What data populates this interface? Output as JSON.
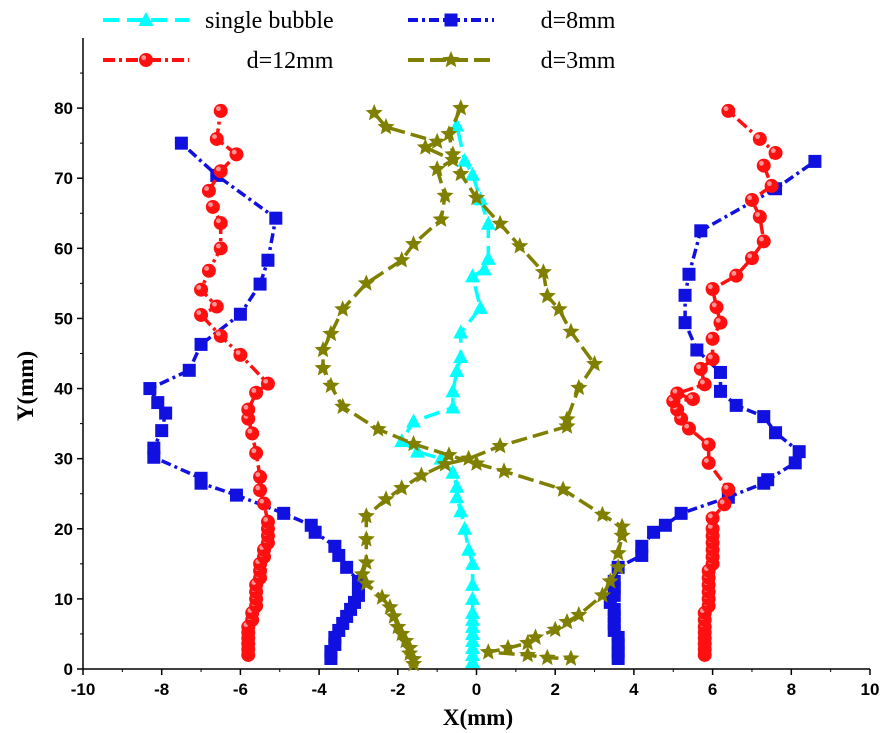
{
  "chart_data": {
    "type": "line",
    "title": "",
    "xlabel": "X(mm)",
    "ylabel": "Y(mm)",
    "xlim": [
      -10,
      10
    ],
    "ylim": [
      0,
      90
    ],
    "xticks": [
      "-10",
      "-8",
      "-6",
      "-4",
      "-2",
      "0",
      "2",
      "4",
      "6",
      "8",
      "10"
    ],
    "yticks": [
      "0",
      "10",
      "20",
      "30",
      "40",
      "50",
      "60",
      "70",
      "80"
    ],
    "grid": false,
    "legend_position": "top",
    "series": [
      {
        "name": "single bubble",
        "color": "#00ffff",
        "marker": "triangle",
        "dash": "16,8",
        "branches": [
          [
            [
              -0.1,
              1
            ],
            [
              -0.1,
              2
            ],
            [
              -0.1,
              3
            ],
            [
              -0.1,
              4
            ],
            [
              -0.1,
              5
            ],
            [
              -0.1,
              6
            ],
            [
              -0.1,
              7
            ],
            [
              -0.1,
              8
            ],
            [
              -0.1,
              10
            ],
            [
              -0.1,
              12
            ],
            [
              -0.1,
              15
            ],
            [
              -0.2,
              17
            ],
            [
              -0.3,
              20
            ],
            [
              -0.4,
              22.5
            ],
            [
              -0.5,
              24.5
            ],
            [
              -0.5,
              26
            ],
            [
              -0.6,
              28
            ],
            [
              -0.9,
              30
            ],
            [
              -1.5,
              31
            ],
            [
              -1.9,
              32.5
            ],
            [
              -1.6,
              35.3
            ],
            [
              -0.6,
              37.3
            ],
            [
              -0.6,
              39.6
            ],
            [
              -0.5,
              42.5
            ],
            [
              -0.4,
              44.5
            ],
            [
              -0.4,
              48
            ],
            [
              0.1,
              51.5
            ],
            [
              -0.1,
              56
            ],
            [
              0.2,
              57
            ],
            [
              0.3,
              58.5
            ],
            [
              0.3,
              63.5
            ],
            [
              0.1,
              67
            ],
            [
              -0.1,
              70.5
            ],
            [
              -0.3,
              72.5
            ],
            [
              -0.5,
              77.5
            ]
          ]
        ]
      },
      {
        "name": "d=8mm",
        "color": "#1010e0",
        "marker": "square",
        "dash": "10,4,3,4",
        "branches": [
          [
            [
              -3.7,
              1.5
            ],
            [
              -3.7,
              2.5
            ],
            [
              -3.6,
              3.5
            ],
            [
              -3.6,
              4.5
            ],
            [
              -3.5,
              5.5
            ],
            [
              -3.4,
              6.5
            ],
            [
              -3.3,
              7.5
            ],
            [
              -3.2,
              8.5
            ],
            [
              -3.1,
              9.5
            ],
            [
              -3.0,
              10.5
            ],
            [
              -3.0,
              11.5
            ],
            [
              -3.0,
              12.5
            ],
            [
              -3.3,
              14.5
            ],
            [
              -3.5,
              16.2
            ],
            [
              -3.6,
              17.5
            ],
            [
              -4.1,
              19.5
            ],
            [
              -4.2,
              20.5
            ],
            [
              -4.9,
              22.2
            ],
            [
              -6.1,
              24.8
            ],
            [
              -7.0,
              26.5
            ],
            [
              -7.0,
              27.2
            ],
            [
              -8.2,
              30.2
            ],
            [
              -8.2,
              31.5
            ],
            [
              -8.0,
              34.0
            ],
            [
              -7.9,
              36.5
            ],
            [
              -8.1,
              38.0
            ],
            [
              -8.3,
              40.0
            ],
            [
              -7.3,
              42.6
            ],
            [
              -7.0,
              46.3
            ],
            [
              -6.0,
              50.6
            ],
            [
              -5.5,
              54.9
            ],
            [
              -5.3,
              58.3
            ],
            [
              -5.1,
              64.3
            ],
            [
              -6.6,
              70.4
            ],
            [
              -7.5,
              75.0
            ]
          ],
          [
            [
              3.6,
              1.5
            ],
            [
              3.6,
              2.5
            ],
            [
              3.6,
              3.5
            ],
            [
              3.6,
              4.5
            ],
            [
              3.5,
              5.5
            ],
            [
              3.5,
              6.5
            ],
            [
              3.5,
              7.5
            ],
            [
              3.5,
              8.5
            ],
            [
              3.4,
              9.5
            ],
            [
              3.5,
              10.5
            ],
            [
              3.5,
              11.5
            ],
            [
              3.5,
              12.5
            ],
            [
              3.6,
              14.5
            ],
            [
              4.2,
              16.2
            ],
            [
              4.2,
              17.5
            ],
            [
              4.5,
              19.5
            ],
            [
              4.8,
              20.5
            ],
            [
              5.2,
              22.2
            ],
            [
              6.4,
              24.5
            ],
            [
              7.3,
              26.5
            ],
            [
              7.4,
              27.0
            ],
            [
              8.1,
              29.4
            ],
            [
              8.2,
              31.0
            ],
            [
              7.6,
              33.7
            ],
            [
              7.3,
              36.0
            ],
            [
              6.6,
              37.6
            ],
            [
              6.2,
              39.6
            ],
            [
              6.2,
              42.3
            ],
            [
              5.6,
              45.5
            ],
            [
              5.3,
              49.4
            ],
            [
              5.3,
              53.3
            ],
            [
              5.4,
              56.3
            ],
            [
              5.7,
              62.5
            ],
            [
              7.6,
              68.5
            ],
            [
              8.6,
              72.4
            ]
          ]
        ]
      },
      {
        "name": "d=12mm",
        "color": "#ff1010",
        "marker": "circle",
        "dash": "12,4,3,4",
        "branches": [
          [
            [
              -5.8,
              2
            ],
            [
              -5.8,
              2.8
            ],
            [
              -5.8,
              3.6
            ],
            [
              -5.8,
              4.4
            ],
            [
              -5.8,
              5.2
            ],
            [
              -5.8,
              6
            ],
            [
              -5.7,
              7
            ],
            [
              -5.7,
              8
            ],
            [
              -5.6,
              9
            ],
            [
              -5.6,
              10
            ],
            [
              -5.6,
              11
            ],
            [
              -5.6,
              12
            ],
            [
              -5.5,
              13
            ],
            [
              -5.5,
              14
            ],
            [
              -5.5,
              15
            ],
            [
              -5.4,
              16
            ],
            [
              -5.4,
              17
            ],
            [
              -5.3,
              18
            ],
            [
              -5.3,
              19
            ],
            [
              -5.3,
              20
            ],
            [
              -5.3,
              21
            ],
            [
              -5.4,
              23.6
            ],
            [
              -5.5,
              25.5
            ],
            [
              -5.5,
              27.4
            ],
            [
              -5.6,
              30.8
            ],
            [
              -5.7,
              33.6
            ],
            [
              -5.8,
              35.7
            ],
            [
              -5.8,
              37.0
            ],
            [
              -5.6,
              39.4
            ],
            [
              -5.3,
              40.7
            ],
            [
              -6.0,
              44.8
            ],
            [
              -6.5,
              47.5
            ],
            [
              -7.0,
              50.5
            ],
            [
              -6.6,
              51.7
            ],
            [
              -7.0,
              54.1
            ],
            [
              -6.8,
              56.8
            ],
            [
              -6.5,
              60.0
            ],
            [
              -6.5,
              63.6
            ],
            [
              -6.7,
              65.9
            ],
            [
              -6.8,
              68.2
            ],
            [
              -6.5,
              71.0
            ],
            [
              -6.1,
              73.4
            ],
            [
              -6.6,
              75.6
            ],
            [
              -6.5,
              79.6
            ]
          ],
          [
            [
              5.8,
              2
            ],
            [
              5.8,
              2.8
            ],
            [
              5.8,
              3.6
            ],
            [
              5.8,
              4.4
            ],
            [
              5.8,
              5.2
            ],
            [
              5.8,
              6
            ],
            [
              5.8,
              7
            ],
            [
              5.8,
              8
            ],
            [
              5.9,
              9
            ],
            [
              5.9,
              10
            ],
            [
              5.9,
              11
            ],
            [
              5.9,
              12
            ],
            [
              5.9,
              13
            ],
            [
              5.9,
              14
            ],
            [
              6.0,
              15
            ],
            [
              6.0,
              16
            ],
            [
              6.0,
              17
            ],
            [
              6.0,
              18
            ],
            [
              6.0,
              19
            ],
            [
              6.0,
              20
            ],
            [
              6.0,
              21.5
            ],
            [
              6.3,
              23.5
            ],
            [
              6.4,
              25.6
            ],
            [
              5.9,
              29.4
            ],
            [
              5.9,
              32.0
            ],
            [
              5.4,
              34.3
            ],
            [
              5.2,
              35.7
            ],
            [
              5.1,
              37.0
            ],
            [
              5.0,
              38.2
            ],
            [
              5.5,
              38.5
            ],
            [
              5.1,
              39.3
            ],
            [
              5.8,
              40.6
            ],
            [
              5.7,
              42.8
            ],
            [
              6.0,
              44.2
            ],
            [
              6.0,
              47.1
            ],
            [
              6.2,
              49.4
            ],
            [
              6.1,
              51.6
            ],
            [
              6.0,
              54.2
            ],
            [
              6.6,
              56.1
            ],
            [
              7.0,
              58.6
            ],
            [
              7.3,
              61.0
            ],
            [
              7.2,
              64.5
            ],
            [
              7.0,
              66.9
            ],
            [
              7.5,
              68.9
            ],
            [
              7.3,
              71.8
            ],
            [
              7.6,
              73.6
            ],
            [
              7.2,
              75.6
            ],
            [
              6.4,
              79.6
            ]
          ]
        ]
      },
      {
        "name": "d=3mm",
        "color": "#808000",
        "marker": "star",
        "dash": "16,6",
        "branches": [
          [
            [
              -1.6,
              0.7
            ],
            [
              -1.6,
              1.4
            ],
            [
              -1.7,
              2.2
            ],
            [
              -1.7,
              3.0
            ],
            [
              -1.8,
              4.0
            ],
            [
              -1.9,
              5.0
            ],
            [
              -2.0,
              6.0
            ],
            [
              -2.1,
              7.5
            ],
            [
              -2.2,
              8.8
            ],
            [
              -2.4,
              10.2
            ],
            [
              -2.8,
              12.2
            ],
            [
              -2.9,
              13.5
            ],
            [
              -2.8,
              15.2
            ],
            [
              -2.8,
              18.5
            ],
            [
              -2.8,
              21.8
            ],
            [
              -2.3,
              24.2
            ],
            [
              -1.9,
              25.8
            ],
            [
              -1.4,
              27.6
            ],
            [
              -0.8,
              29.2
            ],
            [
              -0.2,
              30.0
            ],
            [
              0.6,
              31.8
            ],
            [
              2.3,
              34.6
            ],
            [
              2.3,
              35.6
            ],
            [
              2.6,
              40.1
            ],
            [
              3.0,
              43.5
            ],
            [
              2.4,
              48.1
            ],
            [
              2.1,
              51.3
            ],
            [
              1.8,
              53.2
            ],
            [
              1.7,
              56.6
            ],
            [
              1.1,
              60.3
            ],
            [
              0.6,
              63.5
            ],
            [
              0.0,
              67.2
            ],
            [
              -0.4,
              70.6
            ],
            [
              -0.6,
              73.4
            ],
            [
              -0.7,
              76.3
            ],
            [
              -0.4,
              80.0
            ]
          ],
          [
            [
              -2.6,
              79.3
            ],
            [
              -2.3,
              77.3
            ],
            [
              -1.0,
              75.2
            ],
            [
              -1.3,
              74.4
            ],
            [
              -0.6,
              72.6
            ],
            [
              -1.0,
              71.3
            ],
            [
              -0.8,
              67.5
            ],
            [
              -0.9,
              64.1
            ],
            [
              -1.6,
              60.6
            ],
            [
              -1.9,
              58.3
            ],
            [
              -2.8,
              55.0
            ],
            [
              -3.4,
              51.3
            ],
            [
              -3.7,
              47.8
            ],
            [
              -3.9,
              45.5
            ],
            [
              -3.9,
              42.9
            ],
            [
              -3.7,
              40.4
            ],
            [
              -3.4,
              37.4
            ],
            [
              -2.5,
              34.2
            ],
            [
              -1.6,
              32.1
            ],
            [
              -0.7,
              30.5
            ],
            [
              0.0,
              29.3
            ],
            [
              0.7,
              28.2
            ],
            [
              2.2,
              25.6
            ],
            [
              3.2,
              22.0
            ],
            [
              3.7,
              20.3
            ],
            [
              3.7,
              19.0
            ],
            [
              3.6,
              16.5
            ],
            [
              3.6,
              14.5
            ],
            [
              3.4,
              12.5
            ],
            [
              3.2,
              10.5
            ],
            [
              2.6,
              7.7
            ],
            [
              2.3,
              6.7
            ],
            [
              2.0,
              5.6
            ],
            [
              1.5,
              4.5
            ],
            [
              1.3,
              3.7
            ],
            [
              0.8,
              3.0
            ],
            [
              0.3,
              2.4
            ],
            [
              1.3,
              2.0
            ],
            [
              1.8,
              1.6
            ],
            [
              2.4,
              1.5
            ]
          ]
        ]
      }
    ]
  }
}
